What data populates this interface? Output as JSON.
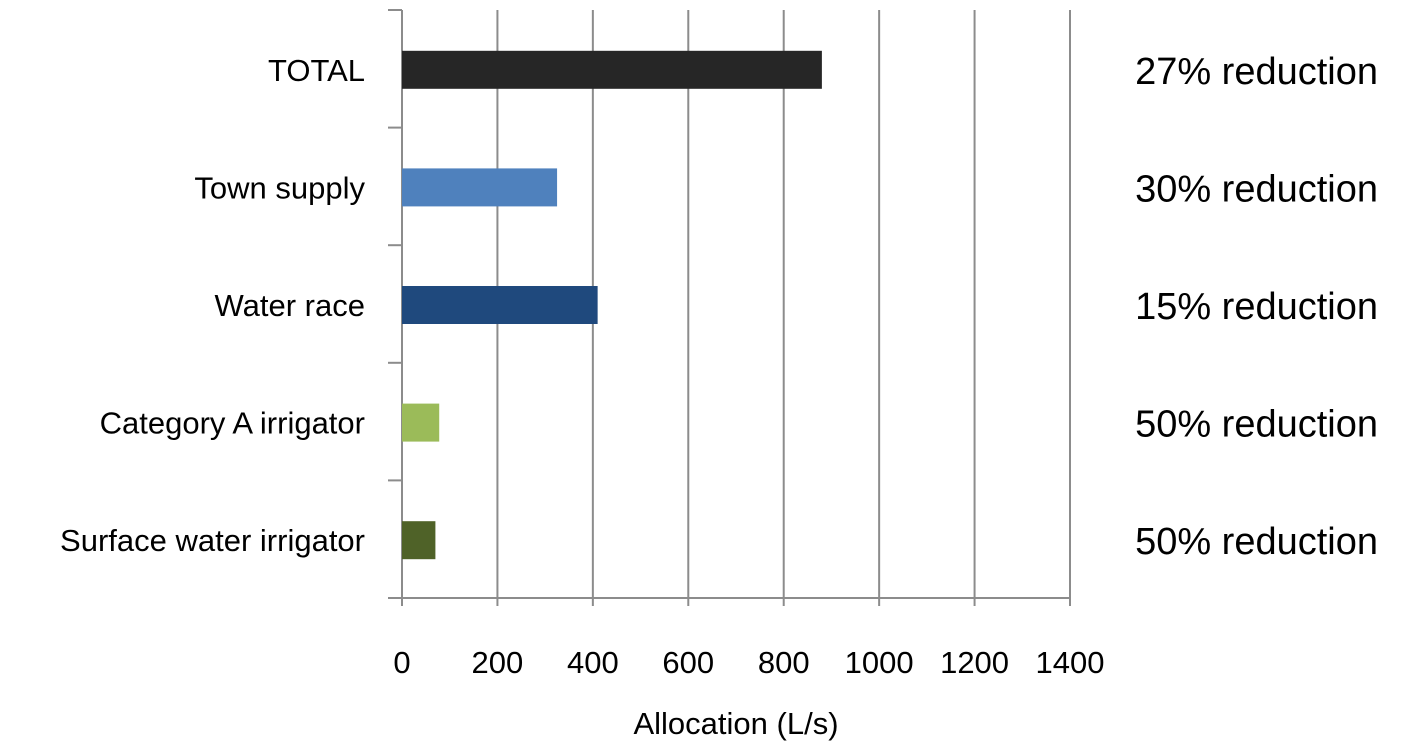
{
  "chart_data": {
    "type": "bar",
    "orientation": "horizontal",
    "categories": [
      "TOTAL",
      "Town supply",
      "Water race",
      "Category A irrigator",
      "Surface water irrigator"
    ],
    "values": [
      880,
      325,
      410,
      78,
      70
    ],
    "bar_colors": [
      "#262626",
      "#4f81bd",
      "#1f497d",
      "#9bbb59",
      "#4f6228"
    ],
    "annotations": [
      "27% reduction",
      "30% reduction",
      "15% reduction",
      "50% reduction",
      "50% reduction"
    ],
    "xlabel": "Allocation (L/s)",
    "ylabel": "",
    "title": "",
    "xlim": [
      0,
      1400
    ],
    "x_ticks": [
      0,
      200,
      400,
      600,
      800,
      1000,
      1200,
      1400
    ],
    "x_tick_labels": [
      "0",
      "200",
      "400",
      "600",
      "800",
      "1000",
      "1200",
      "1400"
    ],
    "grid": "vertical",
    "legend": "none"
  }
}
